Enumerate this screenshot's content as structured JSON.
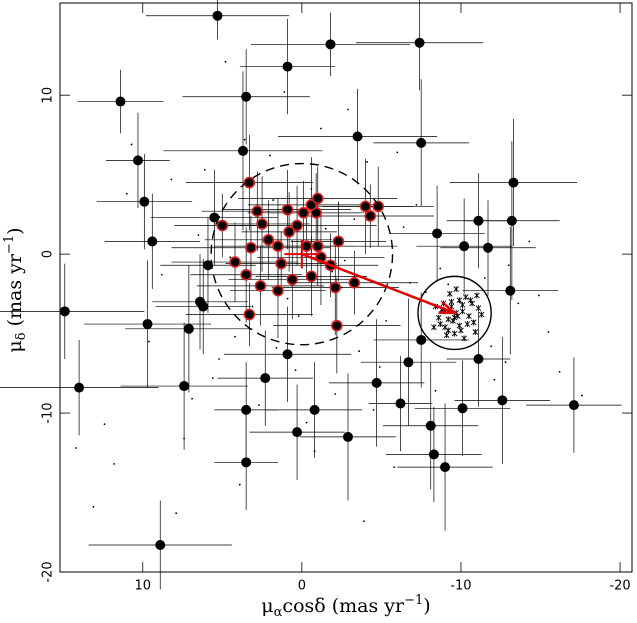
{
  "chart_data": {
    "type": "scatter",
    "xlabel": {
      "main": "μ",
      "sub": "α",
      "rest": "cosδ  (mas yr",
      "sup": "−1",
      "end": ")"
    },
    "ylabel": {
      "main": "μ",
      "sub": "δ",
      "rest": "  (mas yr",
      "sup": "−1",
      "end": ")"
    },
    "xlim": [
      15.2,
      -20.75
    ],
    "ylim": [
      -20,
      15.8
    ],
    "xticks": [
      10,
      0,
      -10,
      -20
    ],
    "yticks": [
      10,
      0,
      -10,
      -20
    ],
    "grid": false,
    "series": [
      {
        "marker": "dot-large",
        "color": "#000000",
        "x": [
          5.3,
          -1.8,
          -7.4,
          0.9,
          11.4,
          3.5,
          10.3,
          3.7,
          -3.5,
          -7.5,
          -13.3,
          9.9,
          9.4,
          5.5,
          -8.5,
          -10.2,
          -11.1,
          -13.2,
          -11.7,
          -13.1,
          14.9,
          14.0,
          9.7,
          7.1,
          7.4,
          6.4,
          6.2,
          5.9,
          8.9,
          3.5,
          3.5,
          2.3,
          0.9,
          0.3,
          -0.8,
          -2.9,
          -4.7,
          -6.2,
          -6.7,
          -8.1,
          -8.3,
          -9.0,
          -10.1,
          -12.6,
          -17.1,
          -11.1,
          -7.5
        ],
        "values": [
          15.0,
          13.2,
          13.3,
          11.8,
          9.6,
          9.9,
          5.9,
          6.5,
          7.4,
          7.0,
          4.5,
          3.3,
          0.8,
          2.3,
          1.3,
          0.5,
          2.1,
          2.1,
          0.4,
          -2.3,
          -3.6,
          -8.4,
          -4.4,
          -4.7,
          -8.3,
          -3.0,
          -3.3,
          -0.7,
          -18.3,
          -13.1,
          -9.8,
          -7.8,
          -6.3,
          -11.2,
          -9.8,
          -11.5,
          -8.1,
          -9.4,
          -6.8,
          -10.8,
          -12.6,
          -13.4,
          -9.7,
          -9.2,
          -9.5,
          -6.6,
          -5.4
        ],
        "xerr": [
          4.5,
          5,
          4,
          3,
          2.7,
          4,
          2,
          5,
          5,
          3,
          4,
          3,
          3,
          4,
          3,
          3,
          2,
          3,
          3,
          3,
          5,
          5,
          4,
          4,
          4,
          3,
          3,
          3,
          4.5,
          2,
          2,
          3,
          4,
          3,
          3,
          3,
          3,
          2,
          3,
          3,
          3,
          3,
          3,
          3,
          3,
          2,
          3
        ],
        "yerr": [
          1.5,
          2,
          3,
          3,
          2,
          3,
          3,
          5,
          3,
          4,
          4,
          3,
          3,
          3,
          3,
          3,
          3,
          5,
          3,
          4,
          3,
          3,
          4,
          4,
          4,
          3,
          3,
          3,
          2.8,
          3,
          3,
          3,
          3,
          3,
          3,
          4,
          4,
          3,
          4,
          4,
          3,
          4,
          3,
          4,
          3,
          3,
          3
        ]
      },
      {
        "marker": "dot-ringed",
        "color": "#000000",
        "edge": "#e02020",
        "x": [
          3.3,
          2.8,
          5.0,
          4.2,
          3.5,
          3.2,
          2.1,
          2.5,
          0.9,
          -0.1,
          -0.9,
          -0.6,
          -1.0,
          0.8,
          1.5,
          1.3,
          0.6,
          1.5,
          2.6,
          3.3,
          -0.6,
          -1.2,
          -1.0,
          -1.8,
          -2.1,
          -2.3,
          -3.3,
          -4.0,
          -4.8,
          -4.3,
          -2.2,
          0.3,
          -0.3
        ],
        "values": [
          4.5,
          2.7,
          1.8,
          -0.5,
          -1.3,
          0.4,
          0.9,
          1.9,
          2.8,
          2.6,
          2.6,
          3.1,
          3.5,
          1.4,
          0.5,
          -0.6,
          -1.6,
          -2.3,
          -2.0,
          -3.8,
          -1.4,
          -0.2,
          0.5,
          -0.7,
          -2.1,
          0.8,
          -1.8,
          3.0,
          3.0,
          2.4,
          -4.5,
          1.8,
          0.5
        ],
        "xerr": [
          4,
          3.5,
          3,
          4,
          3.5,
          5,
          4,
          3,
          4,
          3.5,
          3,
          4,
          5,
          3,
          4,
          3.5,
          4,
          3,
          4,
          4,
          3.5,
          4,
          5,
          3,
          4,
          3,
          4,
          3,
          3.5,
          4,
          4,
          5,
          3
        ],
        "yerr": [
          3,
          2.5,
          2,
          2.5,
          3,
          2,
          2.5,
          3,
          2.5,
          2,
          2.5,
          3,
          2,
          2.5,
          3,
          2,
          2.5,
          3,
          2.5,
          2,
          2.5,
          3,
          2.5,
          2,
          3,
          2.5,
          2,
          3,
          2.5,
          2,
          3,
          2.5,
          2
        ]
      },
      {
        "marker": "dot-small",
        "color": "#000000",
        "x": [
          -2.5,
          1.8,
          4.2,
          -4.1,
          6.5,
          -6.8,
          0.4,
          -1.2,
          3.1,
          -3.6,
          8.2,
          -8.7,
          2.7,
          -5.3,
          5.6,
          -0.8,
          1.1,
          -2.9,
          7.4,
          -7.2,
          9.6,
          -11.5,
          -12.8,
          -14.3,
          11.8,
          13.1,
          -15.5,
          -16.2,
          4.8,
          -4.5,
          0.2,
          -0.6,
          2.3,
          -2.1,
          6.1,
          -6.0,
          3.9,
          -3.3,
          1.6,
          -1.9,
          -9.2,
          -10.8,
          -11.9,
          -13.6,
          -8.4,
          10.7,
          12.4,
          7.9,
          -5.8,
          5.2,
          -1.5,
          0.9,
          -3.9,
          3.6,
          -7.8,
          8.8,
          -12.1,
          -14.9,
          -17.6,
          14.2,
          2.0,
          -2.7,
          -0.3,
          4.5,
          -4.9,
          6.9,
          -6.4,
          -9.9,
          -13.0,
          11.0
        ],
        "values": [
          -2.1,
          3.4,
          -5.2,
          5.8,
          1.2,
          -1.8,
          -7.3,
          7.9,
          -3.3,
          -6.1,
          4.7,
          -0.9,
          -9.5,
          -4.2,
          -7.8,
          -12.4,
          10.2,
          9.1,
          -11.6,
          3.1,
          -5.5,
          -1.5,
          -6.8,
          0.8,
          -13.2,
          -15.9,
          -4.9,
          -7.4,
          12.1,
          -9.8,
          -3.9,
          4.1,
          0.9,
          -8.8,
          5.3,
          6.4,
          -14.5,
          2.2,
          -5.9,
          -1.1,
          -1.9,
          -4.2,
          -5.8,
          -3.1,
          -8.6,
          6.9,
          -10.7,
          -16.3,
          -13.4,
          -6.6,
          1.6,
          -2.8,
          -16.8,
          7.2,
          -2.4,
          -1.3,
          -7.9,
          -2.6,
          -8.9,
          -12.2,
          6.2,
          -0.4,
          -10.6,
          -0.2,
          -7.1,
          -9.1,
          1.7,
          -3.0,
          -0.7,
          3.8
        ]
      },
      {
        "marker": "cross",
        "color": "#000000",
        "x": [
          -9.7,
          -10.1,
          -9.2,
          -9.9,
          -10.5,
          -8.8,
          -9.4,
          -10.8,
          -9.0,
          -10.3,
          -9.6,
          -8.6,
          -11.1,
          -9.3,
          -10.0,
          -9.8,
          -8.9,
          -10.6,
          -9.5,
          -10.2,
          -9.1,
          -11.3,
          -8.4,
          -9.7,
          -10.4,
          -9.0,
          -10.9,
          -9.4,
          -8.7,
          -10.1,
          -9.9,
          -9.2,
          -10.7,
          -9.6,
          -8.3,
          -11.0
        ],
        "values": [
          -3.7,
          -3.2,
          -4.1,
          -4.5,
          -3.9,
          -3.5,
          -3.0,
          -4.3,
          -4.6,
          -2.7,
          -5.0,
          -4.0,
          -3.4,
          -2.5,
          -4.8,
          -3.9,
          -3.1,
          -2.9,
          -4.2,
          -5.3,
          -5.1,
          -3.8,
          -3.3,
          -2.2,
          -4.4,
          -3.6,
          -4.9,
          -3.3,
          -4.4,
          -3.6,
          -2.9,
          -4.8,
          -3.1,
          -4.0,
          -4.6,
          -2.6
        ]
      }
    ],
    "circles": [
      {
        "x": 0,
        "y": 0,
        "r": 5.7,
        "dashed": true
      },
      {
        "x": -9.6,
        "y": -3.7,
        "r": 2.3,
        "dashed": false
      }
    ],
    "arrow": {
      "x": [
        0,
        -9.6
      ],
      "y": [
        0,
        -3.7
      ],
      "color": "#e00000"
    },
    "reference": {
      "x": 0,
      "y": 0,
      "xerr": 1.1,
      "yerr": 0.9,
      "color": "#e00000"
    }
  }
}
